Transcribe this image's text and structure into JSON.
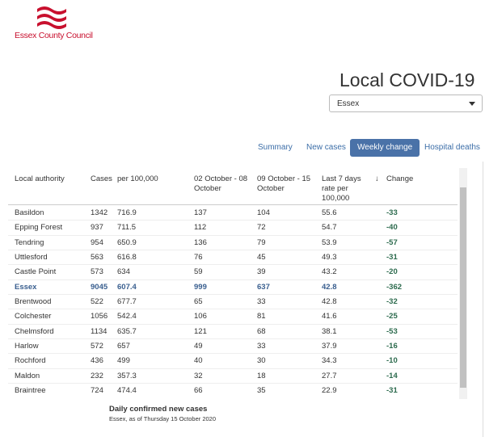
{
  "header": {
    "org": "Essex County Council",
    "title": "Local COVID-19",
    "dropdown": "Essex"
  },
  "tabs": [
    "Summary",
    "New cases",
    "Weekly change",
    "Hospital deaths"
  ],
  "active_tab": 2,
  "table": {
    "headers": [
      "Local authority",
      "Cases",
      "per 100,000",
      "02 October - 08 October",
      "09 October - 15 October",
      "Last 7 days rate per 100,000",
      "↓",
      "Change"
    ],
    "highlight_row": 5,
    "rows": [
      [
        "Basildon",
        1342,
        716.9,
        137,
        104,
        55.6,
        -33
      ],
      [
        "Epping Forest",
        937,
        711.5,
        112,
        72,
        54.7,
        -40
      ],
      [
        "Tendring",
        954,
        650.9,
        136,
        79,
        53.9,
        -57
      ],
      [
        "Uttlesford",
        563,
        616.8,
        76,
        45,
        49.3,
        -31
      ],
      [
        "Castle Point",
        573,
        634,
        59,
        39,
        43.2,
        -20
      ],
      [
        "Essex",
        9045,
        607.4,
        999,
        637,
        42.8,
        -362
      ],
      [
        "Brentwood",
        522,
        677.7,
        65,
        33,
        42.8,
        -32
      ],
      [
        "Colchester",
        1056,
        542.4,
        106,
        81,
        41.6,
        -25
      ],
      [
        "Chelmsford",
        1134,
        635.7,
        121,
        68,
        38.1,
        -53
      ],
      [
        "Harlow",
        572,
        657,
        49,
        33,
        37.9,
        -16
      ],
      [
        "Rochford",
        436,
        499,
        40,
        30,
        34.3,
        -10
      ],
      [
        "Maldon",
        232,
        357.3,
        32,
        18,
        27.7,
        -14
      ],
      [
        "Braintree",
        724,
        474.4,
        66,
        35,
        22.9,
        -31
      ]
    ]
  },
  "footer": {
    "title": "Daily confirmed new cases",
    "subtitle": "Essex, as of Thursday 15 October 2020"
  }
}
